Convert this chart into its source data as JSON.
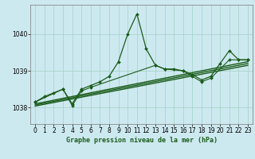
{
  "title": "Graphe pression niveau de la mer (hPa)",
  "bg_color": "#cde9f0",
  "grid_color": "#aad4cc",
  "line_color": "#1a5c1a",
  "xlim": [
    -0.5,
    23.5
  ],
  "ylim": [
    1037.55,
    1040.8
  ],
  "yticks": [
    1038,
    1039,
    1040
  ],
  "xticks": [
    0,
    1,
    2,
    3,
    4,
    5,
    6,
    7,
    8,
    9,
    10,
    11,
    12,
    13,
    14,
    15,
    16,
    17,
    18,
    19,
    20,
    21,
    22,
    23
  ],
  "series1_x": [
    0,
    1,
    2,
    3,
    4,
    5,
    6,
    7,
    8,
    9,
    10,
    11,
    12,
    13,
    14,
    15,
    16,
    17,
    18,
    19,
    20,
    21,
    22,
    23
  ],
  "series1_y": [
    1038.15,
    1038.3,
    1038.4,
    1038.5,
    1038.1,
    1038.5,
    1038.6,
    1038.7,
    1038.85,
    1039.25,
    1040.0,
    1040.55,
    1039.6,
    1039.15,
    1039.05,
    1039.05,
    1039.0,
    1038.9,
    1038.75,
    1038.85,
    1039.2,
    1039.55,
    1039.3,
    1039.3
  ],
  "series2_x": [
    0,
    3,
    4,
    5,
    6,
    13,
    14,
    16,
    17,
    18,
    19,
    21,
    22,
    23
  ],
  "series2_y": [
    1038.15,
    1038.5,
    1038.05,
    1038.45,
    1038.55,
    1039.15,
    1039.05,
    1039.0,
    1038.85,
    1038.7,
    1038.8,
    1039.3,
    1039.3,
    1039.3
  ],
  "trend1_x": [
    0,
    23
  ],
  "trend1_y": [
    1038.1,
    1039.25
  ],
  "trend2_x": [
    0,
    23
  ],
  "trend2_y": [
    1038.07,
    1039.2
  ],
  "trend3_x": [
    0,
    23
  ],
  "trend3_y": [
    1038.04,
    1039.15
  ]
}
